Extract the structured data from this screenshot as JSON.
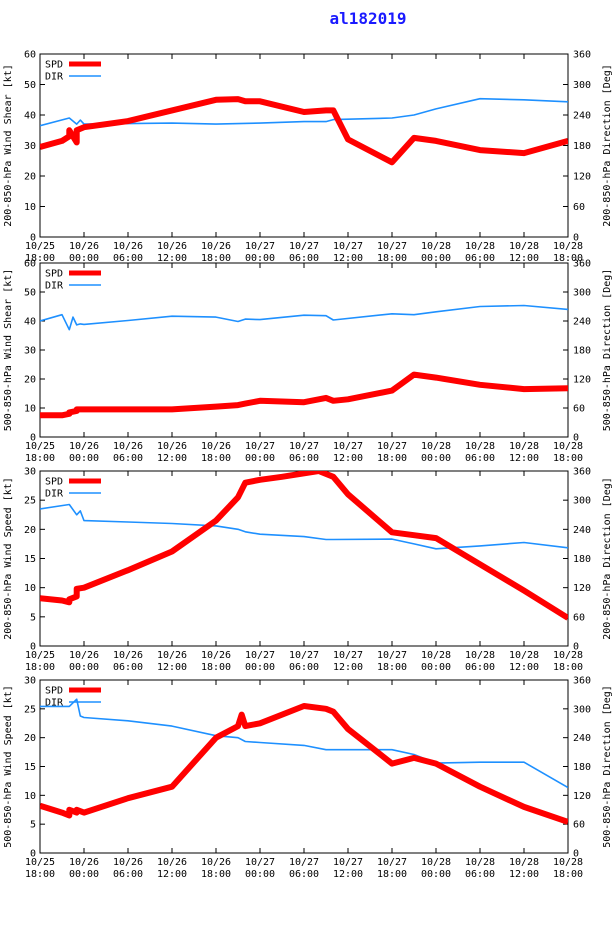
{
  "title": "al182019",
  "colors": {
    "spd": "#ff0000",
    "dir": "#1e90ff",
    "frame": "#000000",
    "title": "#1a1aff"
  },
  "x_tick_labels": [
    [
      "10/25",
      "18:00"
    ],
    [
      "10/26",
      "00:00"
    ],
    [
      "10/26",
      "06:00"
    ],
    [
      "10/26",
      "12:00"
    ],
    [
      "10/26",
      "18:00"
    ],
    [
      "10/27",
      "00:00"
    ],
    [
      "10/27",
      "06:00"
    ],
    [
      "10/27",
      "12:00"
    ],
    [
      "10/27",
      "18:00"
    ],
    [
      "10/28",
      "00:00"
    ],
    [
      "10/28",
      "06:00"
    ],
    [
      "10/28",
      "12:00"
    ],
    [
      "10/28",
      "18:00"
    ]
  ],
  "chart_data": [
    {
      "type": "line",
      "ylabel": "200-850-hPa Wind Shear [kt]",
      "y2label": "200-850-hPa Direction [Deg]",
      "xlim": [
        0,
        72
      ],
      "ylim": [
        0,
        60
      ],
      "y2lim": [
        0,
        360
      ],
      "yticks": [
        "0",
        "10",
        "20",
        "30",
        "40",
        "50",
        "60"
      ],
      "y2ticks": [
        "0",
        "60",
        "120",
        "180",
        "240",
        "300",
        "360"
      ],
      "grid": false,
      "legend": "top-left",
      "series": [
        {
          "name": "SPD",
          "axis": "left",
          "x": [
            0,
            3,
            4,
            4,
            5,
            5,
            6,
            12,
            18,
            24,
            27,
            28,
            30,
            36,
            39,
            40,
            42,
            48,
            51,
            54,
            60,
            66,
            72
          ],
          "y": [
            29.5,
            31.5,
            33,
            35,
            31,
            35,
            36,
            38,
            41.5,
            45,
            45.2,
            44.5,
            44.5,
            41,
            41.5,
            41.5,
            32,
            24.5,
            32.5,
            31.5,
            28.5,
            27.5,
            31.5
          ]
        },
        {
          "name": "DIR",
          "axis": "right",
          "x": [
            0,
            4,
            5,
            5.5,
            6,
            12,
            18,
            24,
            30,
            36,
            39,
            40,
            48,
            51,
            54,
            60,
            66,
            72
          ],
          "y": [
            219,
            234,
            222,
            230,
            222,
            223,
            224,
            222,
            224,
            227,
            227,
            231,
            234,
            240,
            252,
            272,
            270,
            266
          ]
        }
      ]
    },
    {
      "type": "line",
      "ylabel": "500-850-hPa Wind Shear [kt]",
      "y2label": "500-850-hPa Direction [Deg]",
      "xlim": [
        0,
        72
      ],
      "ylim": [
        0,
        60
      ],
      "y2lim": [
        0,
        360
      ],
      "yticks": [
        "0",
        "10",
        "20",
        "30",
        "40",
        "50",
        "60"
      ],
      "y2ticks": [
        "0",
        "60",
        "120",
        "180",
        "240",
        "300",
        "360"
      ],
      "grid": false,
      "legend": "top-left",
      "series": [
        {
          "name": "SPD",
          "axis": "left",
          "x": [
            0,
            3,
            4,
            4,
            5,
            5,
            6,
            12,
            18,
            24,
            27,
            28,
            30,
            36,
            39,
            40,
            42,
            48,
            51,
            54,
            60,
            66,
            72
          ],
          "y": [
            7.5,
            7.5,
            8,
            8.5,
            9,
            9.5,
            9.5,
            9.5,
            9.5,
            10.5,
            11,
            11.5,
            12.5,
            12,
            13.5,
            12.5,
            13,
            16,
            21.5,
            20.5,
            18,
            16.5,
            16.8
          ]
        },
        {
          "name": "DIR",
          "axis": "right",
          "x": [
            0,
            3,
            4,
            4.5,
            5,
            5.5,
            6,
            12,
            18,
            24,
            27,
            28,
            30,
            36,
            39,
            40,
            48,
            51,
            54,
            60,
            66,
            72
          ],
          "y": [
            240,
            253,
            222,
            248,
            232,
            234,
            233,
            241,
            250,
            248,
            239,
            244,
            243,
            252,
            251,
            242,
            255,
            253,
            259,
            270,
            272,
            264
          ]
        }
      ]
    },
    {
      "type": "line",
      "ylabel": "200-850-hPa Wind Speed [kt]",
      "y2label": "200-850-hPa Direction [Deg]",
      "xlim": [
        0,
        72
      ],
      "ylim": [
        0,
        30
      ],
      "y2lim": [
        0,
        360
      ],
      "yticks": [
        "0",
        "5",
        "10",
        "15",
        "20",
        "25",
        "30"
      ],
      "y2ticks": [
        "0",
        "60",
        "120",
        "180",
        "240",
        "300",
        "360"
      ],
      "grid": false,
      "legend": "top-left",
      "series": [
        {
          "name": "SPD",
          "axis": "left",
          "x": [
            0,
            3,
            4,
            4,
            5,
            5,
            6,
            12,
            18,
            24,
            27,
            28,
            30,
            33,
            38,
            40,
            42,
            48,
            51,
            54,
            60,
            66,
            72
          ],
          "y": [
            8.2,
            7.8,
            7.5,
            8,
            8.5,
            9.8,
            10,
            13,
            16.2,
            21.5,
            25.5,
            28,
            28.5,
            29,
            30,
            29,
            26,
            19.5,
            19,
            18.5,
            14,
            9.5,
            4.8
          ]
        },
        {
          "name": "DIR",
          "axis": "right",
          "x": [
            0,
            4,
            5,
            5.5,
            6,
            12,
            18,
            24,
            27,
            28,
            30,
            36,
            39,
            40,
            48,
            51,
            54,
            60,
            66,
            72
          ],
          "y": [
            282,
            291,
            270,
            278,
            258,
            255,
            252,
            247,
            240,
            235,
            230,
            225,
            219,
            219,
            220,
            210,
            200,
            206,
            213,
            202
          ]
        }
      ]
    },
    {
      "type": "line",
      "ylabel": "500-850-hPa Wind Speed [kt]",
      "y2label": "500-850-hPa Direction [Deg]",
      "xlim": [
        0,
        72
      ],
      "ylim": [
        0,
        30
      ],
      "y2lim": [
        0,
        360
      ],
      "yticks": [
        "0",
        "5",
        "10",
        "15",
        "20",
        "25",
        "30"
      ],
      "y2ticks": [
        "0",
        "60",
        "120",
        "180",
        "240",
        "300",
        "360"
      ],
      "grid": false,
      "legend": "top-left",
      "series": [
        {
          "name": "SPD",
          "axis": "left",
          "x": [
            0,
            3,
            4,
            4,
            5,
            5,
            6,
            12,
            18,
            24,
            27,
            27.5,
            28,
            30,
            36,
            39,
            40,
            42,
            48,
            51,
            54,
            60,
            66,
            72
          ],
          "y": [
            8.2,
            7,
            6.5,
            7.5,
            7,
            7.5,
            7,
            9.5,
            11.5,
            20,
            22,
            24,
            22,
            22.5,
            25.5,
            25,
            24.5,
            21.5,
            15.5,
            16.5,
            15.5,
            11.5,
            8,
            5.4
          ]
        },
        {
          "name": "DIR",
          "axis": "right",
          "x": [
            0,
            4,
            5,
            5.5,
            6,
            12,
            18,
            24,
            27,
            28,
            30,
            36,
            39,
            40,
            48,
            51,
            54,
            60,
            66,
            72
          ],
          "y": [
            305,
            305,
            320,
            285,
            282,
            275,
            264,
            244,
            240,
            232,
            230,
            224,
            215,
            215,
            215,
            205,
            187,
            189,
            189,
            136
          ]
        }
      ]
    }
  ]
}
